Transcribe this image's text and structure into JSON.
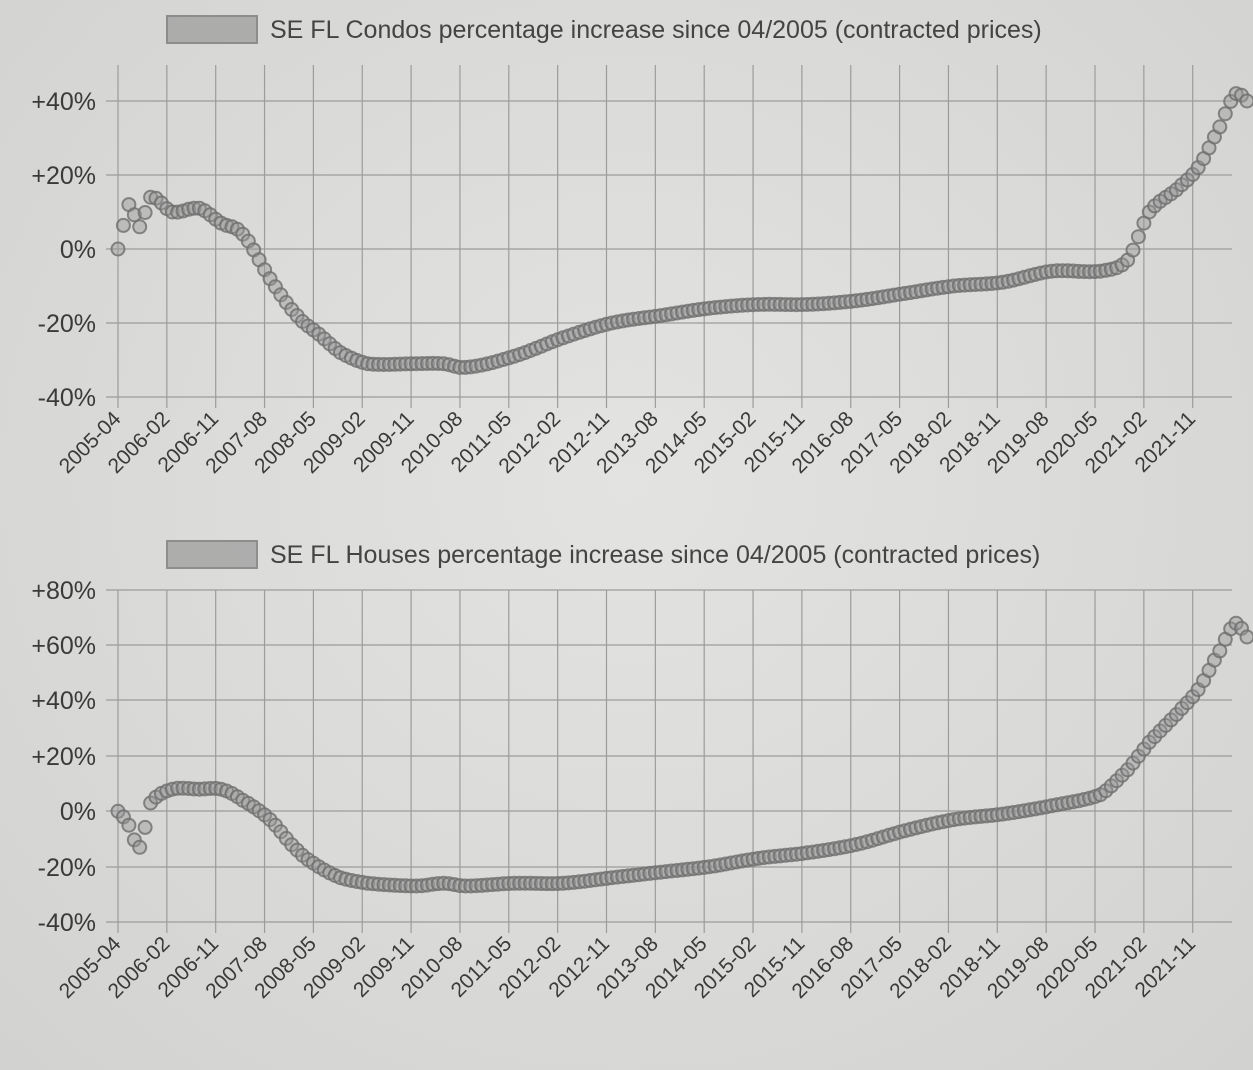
{
  "colors": {
    "background": "#d8d8d6",
    "grid": "#9c9c9c",
    "marker_stroke": "#6e6e6e",
    "marker_fill": "#9a9a9a",
    "text": "#3a3a3a"
  },
  "chart_data": [
    {
      "type": "line",
      "legend": [
        "SE FL Condos percentage increase since 04/2005 (contracted prices)"
      ],
      "legend_position": "top-center",
      "grid": true,
      "x_ticks": [
        "2005-04",
        "2006-02",
        "2006-11",
        "2007-08",
        "2008-05",
        "2009-02",
        "2009-11",
        "2010-08",
        "2011-05",
        "2012-02",
        "2012-11",
        "2013-08",
        "2014-05",
        "2015-02",
        "2015-11",
        "2016-08",
        "2017-05",
        "2018-02",
        "2018-11",
        "2019-08",
        "2020-05",
        "2021-02",
        "2021-11"
      ],
      "y_ticks": [
        "+40%",
        "+20%",
        "0%",
        "-20%",
        "-40%"
      ],
      "ylim": [
        -40,
        40
      ],
      "series": [
        {
          "name": "SE FL Condos percentage increase since 04/2005 (contracted prices)",
          "points": [
            [
              "2005-04",
              0
            ],
            [
              "2005-06",
              12
            ],
            [
              "2005-08",
              6
            ],
            [
              "2005-10",
              14
            ],
            [
              "2006-02",
              10
            ],
            [
              "2006-07",
              11
            ],
            [
              "2006-11",
              7
            ],
            [
              "2007-03",
              4
            ],
            [
              "2007-08",
              -8
            ],
            [
              "2008-01",
              -18
            ],
            [
              "2008-05",
              -23
            ],
            [
              "2008-09",
              -28
            ],
            [
              "2009-02",
              -31
            ],
            [
              "2009-11",
              -31
            ],
            [
              "2010-04",
              -31
            ],
            [
              "2010-08",
              -32
            ],
            [
              "2011-05",
              -29
            ],
            [
              "2012-02",
              -24
            ],
            [
              "2012-11",
              -20
            ],
            [
              "2013-08",
              -18
            ],
            [
              "2014-05",
              -16
            ],
            [
              "2015-02",
              -15
            ],
            [
              "2015-11",
              -15
            ],
            [
              "2016-08",
              -14
            ],
            [
              "2017-05",
              -12
            ],
            [
              "2018-02",
              -10
            ],
            [
              "2018-11",
              -9
            ],
            [
              "2019-08",
              -6
            ],
            [
              "2020-05",
              -6
            ],
            [
              "2020-10",
              -3
            ],
            [
              "2021-02",
              10
            ],
            [
              "2021-07",
              16
            ],
            [
              "2021-11",
              22
            ],
            [
              "2022-03",
              33
            ],
            [
              "2022-06",
              42
            ],
            [
              "2022-08",
              40
            ]
          ]
        }
      ]
    },
    {
      "type": "line",
      "legend": [
        "SE FL Houses percentage increase since 04/2005 (contracted prices)"
      ],
      "legend_position": "top-center",
      "grid": true,
      "x_ticks": [
        "2005-04",
        "2006-02",
        "2006-11",
        "2007-08",
        "2008-05",
        "2009-02",
        "2009-11",
        "2010-08",
        "2011-05",
        "2012-02",
        "2012-11",
        "2013-08",
        "2014-05",
        "2015-02",
        "2015-11",
        "2016-08",
        "2017-05",
        "2018-02",
        "2018-11",
        "2019-08",
        "2020-05",
        "2021-02",
        "2021-11"
      ],
      "y_ticks": [
        "+80%",
        "+60%",
        "+40%",
        "+20%",
        "0%",
        "-20%",
        "-40%"
      ],
      "ylim": [
        -40,
        80
      ],
      "series": [
        {
          "name": "SE FL Houses percentage increase since 04/2005 (contracted prices)",
          "points": [
            [
              "2005-04",
              0
            ],
            [
              "2005-06",
              -5
            ],
            [
              "2005-08",
              -13
            ],
            [
              "2005-10",
              3
            ],
            [
              "2006-02",
              8
            ],
            [
              "2006-07",
              8
            ],
            [
              "2006-11",
              8
            ],
            [
              "2007-03",
              4
            ],
            [
              "2007-08",
              -3
            ],
            [
              "2008-01",
              -14
            ],
            [
              "2008-05",
              -20
            ],
            [
              "2008-09",
              -24
            ],
            [
              "2009-02",
              -26
            ],
            [
              "2009-11",
              -27
            ],
            [
              "2010-04",
              -26
            ],
            [
              "2010-08",
              -27
            ],
            [
              "2011-05",
              -26
            ],
            [
              "2012-02",
              -26
            ],
            [
              "2012-11",
              -24
            ],
            [
              "2013-08",
              -22
            ],
            [
              "2014-05",
              -20
            ],
            [
              "2015-02",
              -17
            ],
            [
              "2015-11",
              -15
            ],
            [
              "2016-08",
              -12
            ],
            [
              "2017-05",
              -7
            ],
            [
              "2018-02",
              -3
            ],
            [
              "2018-11",
              -1
            ],
            [
              "2019-08",
              2
            ],
            [
              "2020-05",
              6
            ],
            [
              "2020-10",
              15
            ],
            [
              "2021-02",
              25
            ],
            [
              "2021-07",
              35
            ],
            [
              "2021-11",
              44
            ],
            [
              "2022-03",
              58
            ],
            [
              "2022-06",
              68
            ],
            [
              "2022-08",
              63
            ]
          ]
        }
      ]
    }
  ]
}
